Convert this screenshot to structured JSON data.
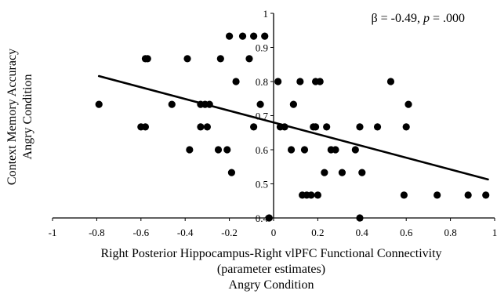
{
  "chart_data": {
    "type": "scatter",
    "xlabel": "Right Posterior Hippocampus-Right vlPFC Functional Connectivity",
    "xlabel_line2": "(parameter estimates)",
    "xlabel_line3": "Angry Condition",
    "ylabel": "Context Memory Accuracy",
    "ylabel_line2": "Angry Condition",
    "annotation": {
      "beta_part": "β = -0.49, ",
      "p_symbol": "p",
      "p_value": " = .000"
    },
    "xlim": [
      -1,
      1
    ],
    "ylim": [
      0.4,
      1
    ],
    "x_ticks": [
      -1,
      -0.8,
      -0.6,
      -0.4,
      -0.2,
      0,
      0.2,
      0.4,
      0.6,
      0.8,
      1
    ],
    "x_tick_labels": [
      "-1",
      "-0.8",
      "-0.6",
      "-0.4",
      "-0.2",
      "0",
      "0.2",
      "0.4",
      "0.6",
      "0.8",
      "1"
    ],
    "y_ticks": [
      0.4,
      0.5,
      0.6,
      0.7,
      0.8,
      0.9,
      1
    ],
    "y_tick_labels": [
      "0.4",
      "0.5",
      "0.6",
      "0.7",
      "0.8",
      "0.9",
      "1"
    ],
    "grid": false,
    "legend": "none",
    "trendline": {
      "x": [
        -0.79,
        0.97
      ],
      "y": [
        0.816,
        0.513
      ]
    },
    "points": [
      {
        "x": -0.79,
        "y": 0.733
      },
      {
        "x": -0.6,
        "y": 0.667
      },
      {
        "x": -0.58,
        "y": 0.667
      },
      {
        "x": -0.58,
        "y": 0.867
      },
      {
        "x": -0.57,
        "y": 0.867
      },
      {
        "x": -0.46,
        "y": 0.733
      },
      {
        "x": -0.39,
        "y": 0.867
      },
      {
        "x": -0.38,
        "y": 0.6
      },
      {
        "x": -0.33,
        "y": 0.733
      },
      {
        "x": -0.33,
        "y": 0.667
      },
      {
        "x": -0.31,
        "y": 0.733
      },
      {
        "x": -0.3,
        "y": 0.667
      },
      {
        "x": -0.29,
        "y": 0.733
      },
      {
        "x": -0.25,
        "y": 0.6
      },
      {
        "x": -0.24,
        "y": 0.867
      },
      {
        "x": -0.21,
        "y": 0.6
      },
      {
        "x": -0.2,
        "y": 0.933
      },
      {
        "x": -0.19,
        "y": 0.533
      },
      {
        "x": -0.17,
        "y": 0.8
      },
      {
        "x": -0.14,
        "y": 0.933
      },
      {
        "x": -0.11,
        "y": 0.867
      },
      {
        "x": -0.09,
        "y": 0.933
      },
      {
        "x": -0.09,
        "y": 0.667
      },
      {
        "x": -0.06,
        "y": 0.733
      },
      {
        "x": -0.04,
        "y": 0.933
      },
      {
        "x": -0.02,
        "y": 0.4
      },
      {
        "x": 0.02,
        "y": 0.8
      },
      {
        "x": 0.03,
        "y": 0.667
      },
      {
        "x": 0.05,
        "y": 0.667
      },
      {
        "x": 0.08,
        "y": 0.6
      },
      {
        "x": 0.09,
        "y": 0.733
      },
      {
        "x": 0.12,
        "y": 0.8
      },
      {
        "x": 0.13,
        "y": 0.467
      },
      {
        "x": 0.14,
        "y": 0.6
      },
      {
        "x": 0.15,
        "y": 0.467
      },
      {
        "x": 0.17,
        "y": 0.467
      },
      {
        "x": 0.18,
        "y": 0.667
      },
      {
        "x": 0.19,
        "y": 0.667
      },
      {
        "x": 0.19,
        "y": 0.8
      },
      {
        "x": 0.2,
        "y": 0.467
      },
      {
        "x": 0.21,
        "y": 0.8
      },
      {
        "x": 0.23,
        "y": 0.533
      },
      {
        "x": 0.24,
        "y": 0.667
      },
      {
        "x": 0.26,
        "y": 0.6
      },
      {
        "x": 0.28,
        "y": 0.6
      },
      {
        "x": 0.31,
        "y": 0.533
      },
      {
        "x": 0.37,
        "y": 0.6
      },
      {
        "x": 0.39,
        "y": 0.4
      },
      {
        "x": 0.39,
        "y": 0.667
      },
      {
        "x": 0.4,
        "y": 0.533
      },
      {
        "x": 0.47,
        "y": 0.667
      },
      {
        "x": 0.53,
        "y": 0.8
      },
      {
        "x": 0.59,
        "y": 0.467
      },
      {
        "x": 0.6,
        "y": 0.667
      },
      {
        "x": 0.61,
        "y": 0.733
      },
      {
        "x": 0.74,
        "y": 0.467
      },
      {
        "x": 0.88,
        "y": 0.467
      },
      {
        "x": 0.96,
        "y": 0.467
      }
    ],
    "colors": {
      "points": "#000000",
      "trendline": "#000000",
      "axes": "#000000"
    }
  }
}
